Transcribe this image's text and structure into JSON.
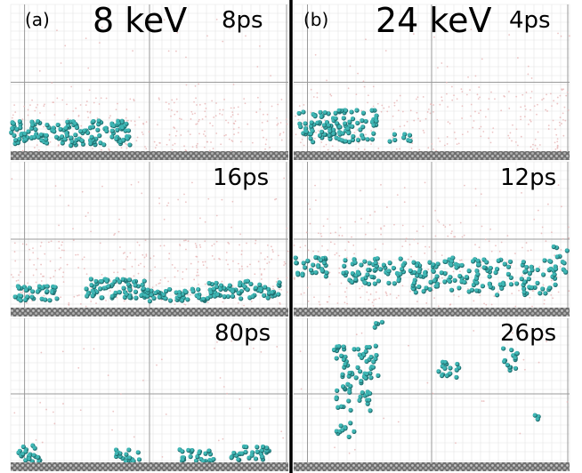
{
  "figure": {
    "panels": [
      {
        "id": "a",
        "letter": "(a)",
        "energy": "8 keV",
        "frames": [
          {
            "time": "8ps"
          },
          {
            "time": "16ps"
          },
          {
            "time": "80ps"
          }
        ]
      },
      {
        "id": "b",
        "letter": "(b)",
        "energy": "24 keV",
        "frames": [
          {
            "time": "4ps"
          },
          {
            "time": "12ps"
          },
          {
            "time": "26ps"
          }
        ]
      }
    ],
    "colors": {
      "background": "#ffffff",
      "grid_fine": "#e4e4e4",
      "grid_major": "#9a9a9a",
      "substrate": "#8f8f8f",
      "particle": "#3fb7b5",
      "particle_dark": "#1f6f70",
      "vapor": "#e7b4b4",
      "divider": "#000000"
    }
  }
}
